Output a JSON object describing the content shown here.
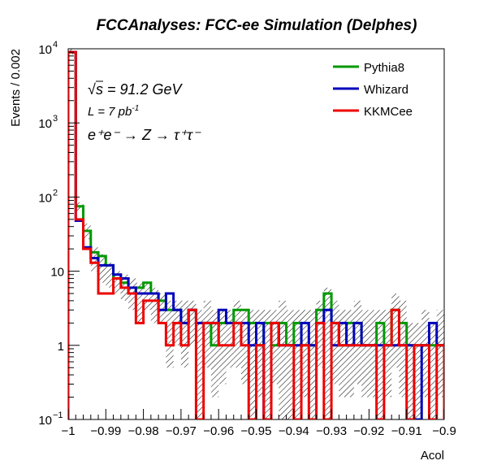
{
  "chart_data": {
    "type": "histogram",
    "title": "FCCAnalyses: FCC-ee Simulation (Delphes)",
    "xlabel": "Acol",
    "ylabel": "Events / 0.002",
    "xlim": [
      -1.0,
      -0.9
    ],
    "ylim": [
      0.1,
      10000
    ],
    "yscale": "log",
    "bin_width": 0.002,
    "x_ticks": [
      -1,
      -0.99,
      -0.98,
      -0.97,
      -0.96,
      -0.95,
      -0.94,
      -0.93,
      -0.92,
      -0.91,
      -0.9
    ],
    "x_tick_labels": [
      "−1",
      "−0.99",
      "−0.98",
      "−0.97",
      "−0.96",
      "−0.95",
      "−0.94",
      "−0.93",
      "−0.92",
      "−0.91",
      "−0.9"
    ],
    "y_ticks": [
      0.1,
      1,
      10,
      100,
      1000,
      10000
    ],
    "y_tick_labels": [
      {
        "base": "10",
        "exp": "−1"
      },
      {
        "base": "1",
        "exp": ""
      },
      {
        "base": "10",
        "exp": ""
      },
      {
        "base": "10",
        "exp": "2"
      },
      {
        "base": "10",
        "exp": "3"
      },
      {
        "base": "10",
        "exp": "4"
      }
    ],
    "annotations": {
      "sqrt_s": "s = 91.2 GeV",
      "lumi": "L = 7 pb",
      "lumi_exp": "-1",
      "process": "e⁺e⁻ → Z → τ⁺τ⁻"
    },
    "legend_position": "top-right",
    "series": [
      {
        "name": "Pythia8",
        "color": "#009900",
        "values": [
          9000,
          75,
          35,
          18,
          16,
          12,
          8,
          7,
          5,
          6,
          7,
          5,
          4,
          3,
          3,
          2,
          3,
          2,
          2,
          1,
          2,
          2,
          3,
          3,
          2,
          1,
          2,
          1,
          2,
          1,
          2,
          1,
          1,
          3,
          5,
          2,
          1,
          2,
          2,
          1,
          1,
          2,
          1,
          3,
          2,
          1,
          1,
          1,
          1,
          1
        ]
      },
      {
        "name": "Whizard",
        "color": "#0000bb",
        "values": [
          9000,
          48,
          21,
          15,
          12,
          12,
          9,
          8,
          6,
          5,
          5,
          5,
          3,
          5,
          3,
          2,
          3,
          2,
          2,
          2,
          3,
          2,
          2,
          2,
          1,
          2,
          0.1,
          2,
          1,
          1,
          1,
          2,
          1,
          2,
          3,
          1,
          2,
          1,
          2,
          1,
          1,
          1,
          1,
          1,
          1,
          1,
          0.1,
          1,
          2,
          1
        ]
      },
      {
        "name": "KKMCee",
        "color": "#ee0000",
        "values": [
          9000,
          50,
          20,
          13,
          5,
          5,
          8,
          6,
          5,
          2,
          4,
          4,
          2,
          1,
          2,
          1,
          3,
          0.1,
          2,
          2,
          1,
          1,
          2,
          1,
          0.1,
          1,
          0.1,
          2,
          1,
          1,
          0.1,
          1,
          0.1,
          2,
          0.1,
          2,
          1,
          1,
          1,
          1,
          1,
          0.1,
          1,
          3,
          1,
          0.1,
          1,
          1,
          0.1,
          1
        ]
      }
    ],
    "uncertainty_band": {
      "fill": "hatched",
      "lower": [
        8400,
        64,
        27,
        10,
        7,
        6,
        5,
        4,
        3,
        2,
        3,
        2,
        2,
        0.5,
        1,
        0.5,
        1,
        0.1,
        0.5,
        0.2,
        0.3,
        0.5,
        0.5,
        0.3,
        0.1,
        0.2,
        0.1,
        0.3,
        0.1,
        0.1,
        0.1,
        0.2,
        0.1,
        0.5,
        0.1,
        0.3,
        0.2,
        0.2,
        0.3,
        0.2,
        0.2,
        0.1,
        0.2,
        0.5,
        0.2,
        0.1,
        0.1,
        0.2,
        0.1,
        0.2
      ],
      "upper": [
        9900,
        85,
        44,
        21,
        17,
        13,
        10,
        9,
        8,
        7,
        7,
        6,
        5,
        4,
        4,
        4,
        4,
        3,
        4,
        3,
        3,
        3,
        4,
        3,
        3,
        3,
        3,
        3,
        4,
        3,
        3,
        3,
        3,
        4,
        6,
        4,
        3,
        3,
        4,
        3,
        3,
        3,
        3,
        5,
        4,
        2,
        2,
        3,
        2,
        3
      ]
    }
  }
}
